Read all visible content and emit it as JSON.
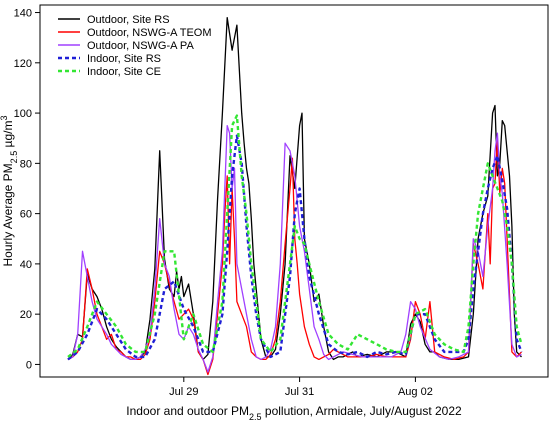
{
  "chart_data": {
    "type": "line",
    "title": "",
    "xlabel_html": "Indoor and outdoor PM<tspan baseline-shift=\"sub\" font-size=\"9\">2.5</tspan> pollution, Armidale, July/August 2022",
    "xlabel": "Indoor and outdoor PM2.5 pollution, Armidale, July/August 2022",
    "ylabel": "Hourly Average PM2.5 µg/m3",
    "ylim": [
      -5,
      143
    ],
    "y_ticks": [
      0,
      20,
      40,
      60,
      80,
      100,
      120,
      140
    ],
    "xlim": [
      0,
      192
    ],
    "x_ticks": [
      {
        "x": 48,
        "label": "Jul 29"
      },
      {
        "x": 96,
        "label": "Jul 31"
      },
      {
        "x": 144,
        "label": "Aug 02"
      }
    ],
    "grid": false,
    "legend_position": "top-left",
    "series": [
      {
        "name": "Outdoor, Site RS",
        "color": "#000000",
        "dash": "solid",
        "x": [
          0,
          2,
          4,
          6,
          8,
          10,
          12,
          14,
          16,
          18,
          20,
          22,
          24,
          26,
          28,
          30,
          32,
          34,
          36,
          38,
          40,
          42,
          44,
          45,
          46,
          47,
          48,
          50,
          52,
          54,
          56,
          58,
          60,
          62,
          64,
          66,
          68,
          70,
          72,
          73,
          74,
          75,
          76,
          77,
          78,
          79,
          80,
          82,
          84,
          86,
          88,
          90,
          92,
          94,
          96,
          97,
          98,
          100,
          102,
          104,
          106,
          108,
          110,
          112,
          114,
          116,
          118,
          120,
          124,
          128,
          132,
          136,
          140,
          142,
          144,
          146,
          148,
          150,
          152,
          154,
          158,
          162,
          166,
          168,
          170,
          172,
          174,
          176,
          177,
          178,
          179,
          180,
          181,
          182,
          183,
          184,
          185,
          186,
          188
        ],
        "y": [
          2,
          4,
          12,
          11,
          36,
          30,
          27,
          22,
          15,
          10,
          7,
          5,
          3,
          2,
          2,
          3,
          5,
          18,
          38,
          85,
          42,
          30,
          27,
          37,
          30,
          35,
          27,
          32,
          20,
          5,
          2,
          4,
          25,
          66,
          100,
          138,
          125,
          135,
          100,
          88,
          78,
          72,
          58,
          40,
          30,
          20,
          10,
          3,
          3,
          6,
          20,
          40,
          83,
          70,
          95,
          100,
          50,
          40,
          25,
          28,
          15,
          5,
          2,
          3,
          3,
          4,
          5,
          3,
          4,
          3,
          5,
          5,
          3,
          16,
          20,
          17,
          8,
          5,
          5,
          3,
          2,
          2,
          3,
          20,
          50,
          60,
          67,
          100,
          103,
          75,
          80,
          97,
          95,
          85,
          75,
          55,
          20,
          5,
          3
        ]
      },
      {
        "name": "Outdoor, NSWG-A TEOM",
        "color": "#ff0000",
        "dash": "solid",
        "x": [
          0,
          2,
          4,
          6,
          8,
          10,
          12,
          14,
          16,
          18,
          20,
          22,
          24,
          26,
          28,
          30,
          32,
          34,
          36,
          38,
          40,
          42,
          44,
          46,
          48,
          50,
          52,
          54,
          56,
          58,
          60,
          62,
          64,
          65,
          66,
          67,
          68,
          69,
          70,
          72,
          74,
          76,
          78,
          80,
          82,
          84,
          86,
          88,
          90,
          92,
          93,
          94,
          95,
          96,
          98,
          100,
          102,
          104,
          106,
          108,
          110,
          112,
          116,
          120,
          124,
          128,
          132,
          136,
          140,
          142,
          144,
          146,
          148,
          150,
          152,
          156,
          160,
          164,
          166,
          168,
          170,
          172,
          174,
          175,
          176,
          177,
          178,
          179,
          180,
          181,
          182,
          184,
          186,
          188
        ],
        "y": [
          2,
          3,
          5,
          10,
          38,
          30,
          20,
          15,
          10,
          12,
          6,
          5,
          3,
          3,
          2,
          2,
          4,
          10,
          25,
          45,
          40,
          32,
          25,
          18,
          20,
          22,
          18,
          5,
          2,
          -4,
          2,
          20,
          40,
          60,
          75,
          40,
          70,
          50,
          25,
          20,
          15,
          5,
          3,
          2,
          2,
          4,
          10,
          25,
          48,
          70,
          82,
          50,
          40,
          28,
          15,
          8,
          3,
          2,
          3,
          4,
          6,
          5,
          3,
          3,
          3,
          4,
          3,
          3,
          3,
          10,
          25,
          20,
          10,
          25,
          5,
          3,
          2,
          3,
          5,
          48,
          40,
          30,
          60,
          40,
          70,
          72,
          90,
          68,
          78,
          72,
          50,
          5,
          3,
          5
        ]
      },
      {
        "name": "Outdoor, NSWG-A PA",
        "color": "#a040ff",
        "dash": "solid",
        "x": [
          0,
          2,
          4,
          6,
          8,
          10,
          12,
          14,
          16,
          18,
          20,
          22,
          24,
          26,
          28,
          30,
          32,
          34,
          36,
          38,
          40,
          42,
          44,
          46,
          48,
          50,
          52,
          54,
          56,
          58,
          60,
          62,
          64,
          66,
          67,
          68,
          69,
          70,
          72,
          74,
          76,
          78,
          80,
          82,
          84,
          86,
          88,
          90,
          92,
          94,
          96,
          98,
          100,
          102,
          104,
          106,
          108,
          110,
          114,
          118,
          122,
          126,
          130,
          134,
          138,
          140,
          142,
          144,
          146,
          150,
          154,
          158,
          162,
          166,
          168,
          170,
          172,
          174,
          176,
          177,
          178,
          179,
          180,
          182,
          184,
          186,
          188
        ],
        "y": [
          2,
          3,
          12,
          45,
          35,
          25,
          18,
          15,
          12,
          8,
          6,
          4,
          3,
          2,
          2,
          3,
          6,
          12,
          30,
          58,
          40,
          35,
          22,
          12,
          10,
          15,
          12,
          6,
          2,
          -3,
          3,
          25,
          45,
          95,
          92,
          70,
          78,
          40,
          30,
          20,
          10,
          3,
          2,
          3,
          6,
          15,
          40,
          88,
          85,
          75,
          55,
          45,
          30,
          15,
          10,
          4,
          2,
          3,
          5,
          4,
          3,
          3,
          3,
          3,
          5,
          12,
          25,
          22,
          15,
          6,
          3,
          2,
          3,
          5,
          50,
          45,
          35,
          55,
          70,
          85,
          92,
          75,
          68,
          40,
          8,
          3,
          4
        ]
      },
      {
        "name": "Indoor, Site RS",
        "color": "#1f1fd6",
        "dash": "dashed",
        "x": [
          0,
          4,
          8,
          12,
          16,
          20,
          24,
          28,
          32,
          36,
          40,
          44,
          48,
          52,
          56,
          60,
          64,
          66,
          68,
          70,
          72,
          74,
          76,
          78,
          80,
          84,
          88,
          92,
          94,
          96,
          98,
          100,
          104,
          108,
          112,
          116,
          120,
          124,
          128,
          132,
          136,
          140,
          144,
          148,
          152,
          156,
          160,
          164,
          166,
          168,
          170,
          172,
          174,
          176,
          178,
          180,
          182,
          184,
          186,
          188
        ],
        "y": [
          2,
          5,
          12,
          22,
          18,
          12,
          6,
          3,
          3,
          10,
          30,
          33,
          22,
          15,
          5,
          5,
          20,
          45,
          75,
          91,
          80,
          55,
          35,
          20,
          10,
          3,
          5,
          35,
          60,
          70,
          50,
          35,
          20,
          8,
          5,
          4,
          5,
          3,
          5,
          4,
          5,
          4,
          20,
          20,
          10,
          5,
          5,
          5,
          10,
          30,
          45,
          60,
          70,
          78,
          83,
          73,
          62,
          40,
          10,
          5
        ]
      },
      {
        "name": "Indoor, Site CE",
        "color": "#33e633",
        "dash": "dashed",
        "x": [
          0,
          4,
          8,
          12,
          16,
          20,
          24,
          28,
          32,
          36,
          40,
          44,
          48,
          52,
          56,
          60,
          64,
          66,
          68,
          70,
          72,
          74,
          76,
          78,
          80,
          84,
          88,
          92,
          94,
          96,
          98,
          100,
          104,
          108,
          112,
          116,
          120,
          124,
          128,
          132,
          136,
          140,
          144,
          148,
          152,
          156,
          160,
          164,
          166,
          168,
          170,
          172,
          174,
          176,
          178,
          180,
          182,
          184,
          186,
          188
        ],
        "y": [
          3,
          6,
          15,
          25,
          20,
          15,
          8,
          5,
          5,
          20,
          45,
          45,
          10,
          20,
          8,
          5,
          25,
          60,
          95,
          99,
          75,
          60,
          40,
          25,
          10,
          5,
          10,
          40,
          55,
          50,
          48,
          40,
          25,
          12,
          8,
          6,
          12,
          10,
          8,
          6,
          5,
          5,
          20,
          22,
          12,
          8,
          6,
          5,
          15,
          40,
          60,
          70,
          80,
          75,
          70,
          65,
          55,
          40,
          15,
          8
        ]
      }
    ]
  }
}
